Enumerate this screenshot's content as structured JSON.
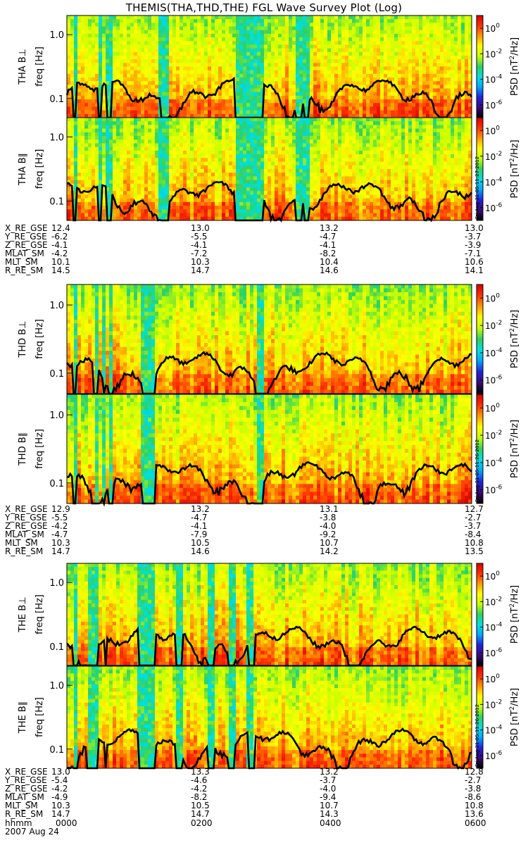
{
  "chart_data": {
    "type": "heatmap",
    "title": "THEMIS(THA,THD,THE) FGL Wave Survey Plot (Log)",
    "date_label": "2007 Aug 24",
    "time_label_name": "hhmm",
    "time_ticks": [
      "0000",
      "0200",
      "0400",
      "0600"
    ],
    "x_range_hours": [
      0,
      6
    ],
    "freq_ylim_hz": [
      0.05,
      2.0
    ],
    "freq_ticks": [
      {
        "label": "1.0",
        "value": 1.0
      },
      {
        "label": "0.1",
        "value": 0.1
      }
    ],
    "colorbar": {
      "title_prefix": "PSD ",
      "title_unit": "[nT",
      "title_unit_sup": "2",
      "title_unit_tail": "/Hz]",
      "range_exp": [
        -7,
        1
      ],
      "ticks": [
        {
          "base": "10",
          "exp": "0",
          "value": 0
        },
        {
          "base": "10",
          "exp": "-2",
          "value": -2
        },
        {
          "base": "10",
          "exp": "-4",
          "value": -4
        },
        {
          "base": "10",
          "exp": "-6",
          "value": -6
        }
      ]
    },
    "panels": [
      {
        "probe": "THA",
        "component": "B⊥",
        "ylabel": "THA B⊥",
        "freq_label": "freq [Hz]",
        "stamp": ""
      },
      {
        "probe": "THA",
        "component": "B∥",
        "ylabel": "THA B∥",
        "freq_label": "freq [Hz]",
        "stamp": "Fri Aug 31 05:11:27 2012"
      },
      {
        "probe": "THD",
        "component": "B⊥",
        "ylabel": "THD B⊥",
        "freq_label": "freq [Hz]",
        "stamp": ""
      },
      {
        "probe": "THD",
        "component": "B∥",
        "ylabel": "THD B∥",
        "freq_label": "freq [Hz]",
        "stamp": "Fri Aug 31 05:11:26 2012"
      },
      {
        "probe": "THE",
        "component": "B⊥",
        "ylabel": "THE B⊥",
        "freq_label": "freq [Hz]",
        "stamp": ""
      },
      {
        "probe": "THE",
        "component": "B∥",
        "ylabel": "THE B∥",
        "freq_label": "freq [Hz]",
        "stamp": "Fri Aug 31 05:11:26 2012"
      }
    ],
    "ephemeris": [
      {
        "probe": "THA",
        "rows": [
          {
            "label": "X_RE_GSE",
            "values": [
              "12.4",
              "13.0",
              "13.2",
              "13.0"
            ]
          },
          {
            "label": "Y_RE_GSE",
            "values": [
              "-6.2",
              "-5.5",
              "-4.7",
              "-3.7"
            ]
          },
          {
            "label": "Z_RE_GSE",
            "values": [
              "-4.1",
              "-4.1",
              "-4.1",
              "-3.9"
            ]
          },
          {
            "label": "MLAT_SM",
            "values": [
              "-4.2",
              "-7.2",
              "-8.2",
              "-7.1"
            ]
          },
          {
            "label": "MLT_SM",
            "values": [
              "10.1",
              "10.3",
              "10.4",
              "10.6"
            ]
          },
          {
            "label": "R_RE_SM",
            "values": [
              "14.5",
              "14.7",
              "14.6",
              "14.1"
            ]
          }
        ]
      },
      {
        "probe": "THD",
        "rows": [
          {
            "label": "X_RE_GSE",
            "values": [
              "12.9",
              "13.2",
              "13.1",
              "12.7"
            ]
          },
          {
            "label": "Y_RE_GSE",
            "values": [
              "-5.5",
              "-4.7",
              "-3.8",
              "-2.7"
            ]
          },
          {
            "label": "Z_RE_GSE",
            "values": [
              "-4.2",
              "-4.1",
              "-4.0",
              "-3.7"
            ]
          },
          {
            "label": "MLAT_SM",
            "values": [
              "-4.7",
              "-7.9",
              "-9.2",
              "-8.4"
            ]
          },
          {
            "label": "MLT_SM",
            "values": [
              "10.3",
              "10.5",
              "10.7",
              "10.8"
            ]
          },
          {
            "label": "R_RE_SM",
            "values": [
              "14.7",
              "14.6",
              "14.2",
              "13.5"
            ]
          }
        ]
      },
      {
        "probe": "THE",
        "rows": [
          {
            "label": "X_RE_GSE",
            "values": [
              "13.0",
              "13.3",
              "13.2",
              "12.8"
            ]
          },
          {
            "label": "Y_RE_GSE",
            "values": [
              "-5.4",
              "-4.6",
              "-3.7",
              "-2.7"
            ]
          },
          {
            "label": "Z_RE_GSE",
            "values": [
              "-4.2",
              "-4.2",
              "-4.0",
              "-3.8"
            ]
          },
          {
            "label": "MLAT_SM",
            "values": [
              "-4.9",
              "-8.2",
              "-9.4",
              "-8.6"
            ]
          },
          {
            "label": "MLT_SM",
            "values": [
              "10.3",
              "10.5",
              "10.7",
              "10.8"
            ]
          },
          {
            "label": "R_RE_SM",
            "values": [
              "14.7",
              "14.7",
              "14.3",
              "13.6"
            ]
          }
        ]
      }
    ],
    "gap_intervals_hours": [
      {
        "probe": "THA",
        "bands": [
          [
            0.1,
            0.15
          ],
          [
            0.45,
            0.52
          ],
          [
            0.6,
            0.66
          ],
          [
            1.38,
            1.52
          ],
          [
            2.48,
            2.92
          ],
          [
            3.38,
            3.48
          ],
          [
            3.52,
            3.58
          ]
        ]
      },
      {
        "probe": "THD",
        "bands": [
          [
            0.1,
            0.14
          ],
          [
            0.4,
            0.47
          ],
          [
            0.53,
            0.56
          ],
          [
            0.62,
            0.68
          ],
          [
            1.1,
            1.3
          ],
          [
            2.8,
            2.9
          ]
        ]
      },
      {
        "probe": "THE",
        "bands": [
          [
            0.1,
            0.16
          ],
          [
            0.3,
            0.45
          ],
          [
            0.55,
            0.6
          ],
          [
            1.05,
            1.3
          ],
          [
            1.62,
            1.72
          ],
          [
            2.08,
            2.18
          ],
          [
            2.38,
            2.48
          ],
          [
            2.68,
            2.78
          ]
        ]
      }
    ],
    "colors": {
      "spectrum": [
        "#000000",
        "#3a0a7a",
        "#2222dd",
        "#00a8ff",
        "#00e0e0",
        "#30d060",
        "#c8ff00",
        "#ffff00",
        "#ff9a00",
        "#ff3000",
        "#d80000"
      ],
      "trace": "#000000"
    }
  }
}
